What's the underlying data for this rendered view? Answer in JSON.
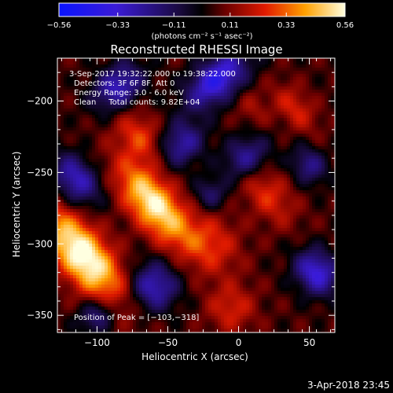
{
  "chart_data": {
    "type": "heatmap",
    "title": "Reconstructed RHESSI Image",
    "xlabel": "Heliocentric X (arcsec)",
    "ylabel": "Heliocentric Y (arcsec)",
    "xlim": [
      -128,
      68
    ],
    "ylim": [
      -362,
      -170
    ],
    "xticks": [
      -100,
      -50,
      0,
      50
    ],
    "xtick_labels": [
      "−100",
      "−50",
      "0",
      "50"
    ],
    "yticks": [
      -200,
      -250,
      -300,
      -350
    ],
    "ytick_labels": [
      "−200",
      "−250",
      "−300",
      "−350"
    ],
    "colorbar": {
      "min": -0.56,
      "max": 0.56,
      "ticks": [
        -0.56,
        -0.33,
        -0.11,
        0.11,
        0.33,
        0.56
      ],
      "tick_labels": [
        "−0.56",
        "−0.33",
        "−0.11",
        "0.11",
        "0.33",
        "0.56"
      ],
      "unit_label": "(photons cm⁻² s⁻¹ asec⁻²)"
    },
    "info_lines": [
      "3-Sep-2017 19:32:22.000 to 19:38:22.000",
      "Detectors: 3F 6F 8F, Att 0",
      "Energy Range: 3.0 - 6.0 keV",
      "Clean     Total counts: 9.82E+04"
    ],
    "peak_label": "Position of Peak = [−103,−318]",
    "peak_xy": [
      -103,
      -318
    ],
    "grid": false
  },
  "footer": {
    "timestamp": "3-Apr-2018 23:45"
  }
}
